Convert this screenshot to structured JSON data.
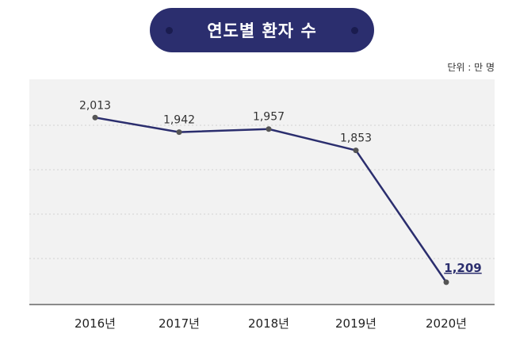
{
  "chart_data": {
    "type": "line",
    "title": "연도별 환자 수",
    "unit_label": "단위 : 만 명",
    "categories": [
      "2016년",
      "2017년",
      "2018년",
      "2019년",
      "2020년"
    ],
    "values": [
      2013,
      1942,
      1957,
      1853,
      1209
    ],
    "value_labels": [
      "2,013",
      "1,942",
      "1,957",
      "1,853",
      "1,209"
    ],
    "highlight_index": 4,
    "ylim": [
      1100,
      2200
    ],
    "grid": "horizontal-dotted",
    "colors": {
      "title_bg": "#2b2e6e",
      "line": "#2b2e6e",
      "point": "#555555",
      "plot_bg": "#f2f2f2"
    }
  }
}
